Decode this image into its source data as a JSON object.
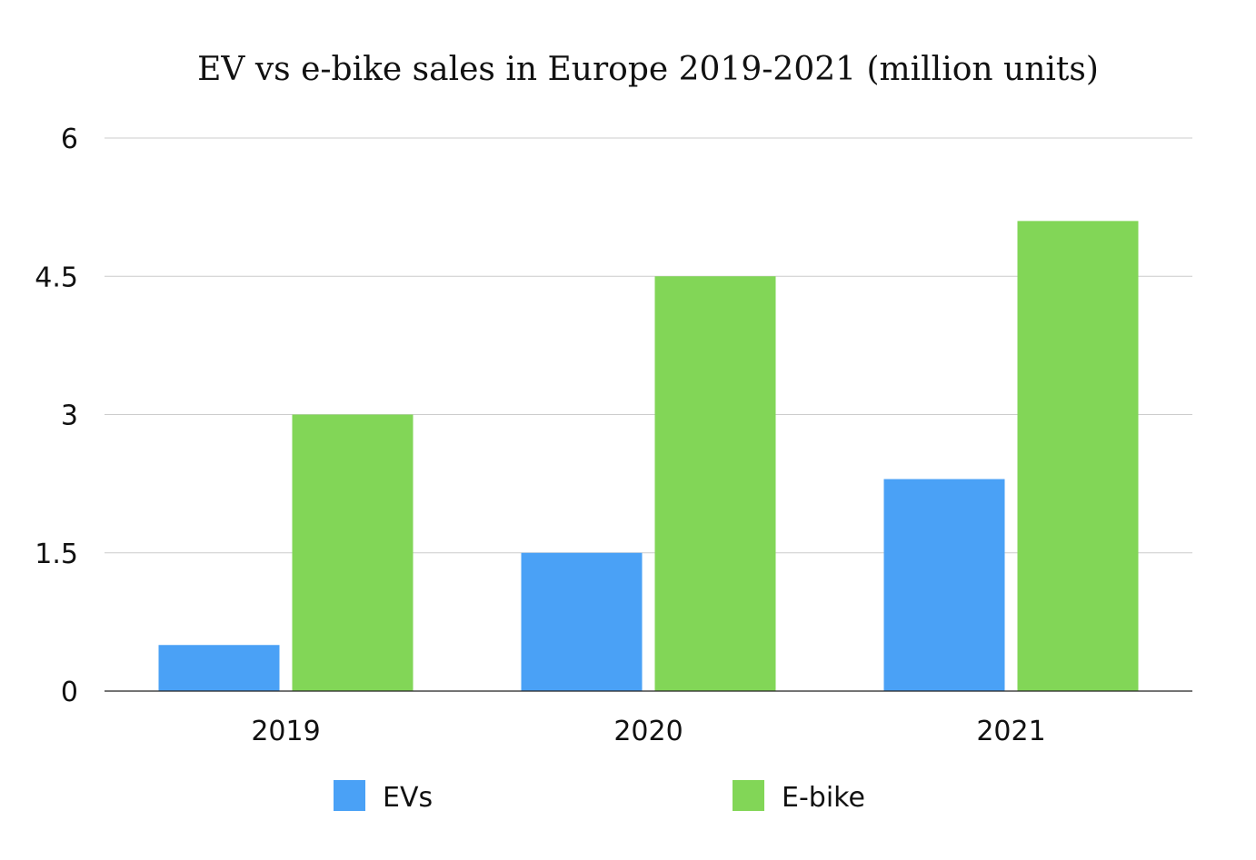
{
  "chart_data": {
    "type": "bar",
    "title": "EV vs e-bike sales in Europe 2019-2021 (million units)",
    "xlabel": "",
    "ylabel": "",
    "categories": [
      "2019",
      "2020",
      "2021"
    ],
    "series": [
      {
        "name": "EVs",
        "values": [
          0.5,
          1.5,
          2.3
        ],
        "color": "#4aa1f6"
      },
      {
        "name": "E-bike",
        "values": [
          3.0,
          4.5,
          5.1
        ],
        "color": "#82d657"
      }
    ],
    "ylim": [
      0,
      6
    ],
    "yticks": [
      0,
      1.5,
      3,
      4.5,
      6
    ],
    "ytick_labels": [
      "0",
      "1.5",
      "3",
      "4.5",
      "6"
    ],
    "grid": true,
    "legend_position": "bottom",
    "colors": {
      "gridline": "#cccccc",
      "axis": "#222222",
      "text": "#111111"
    }
  }
}
